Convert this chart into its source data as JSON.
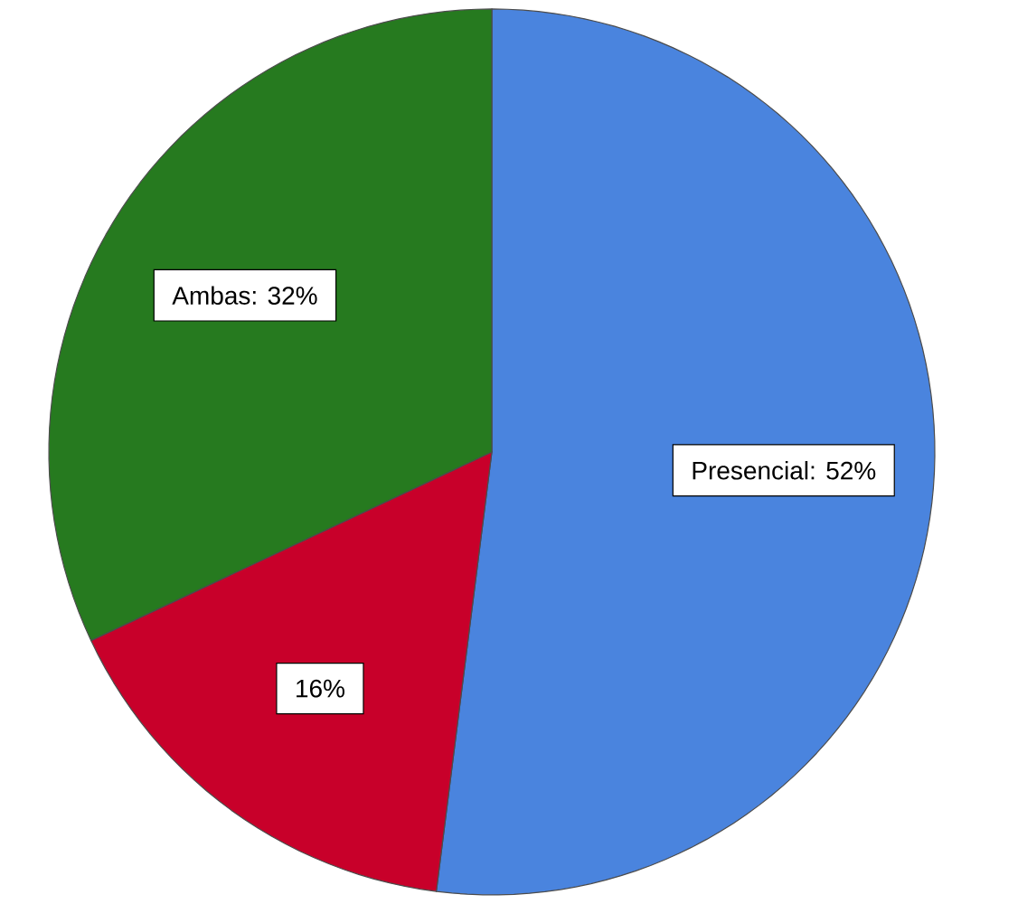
{
  "chart_data": {
    "type": "pie",
    "categories": [
      "Presencial",
      null,
      "Ambas"
    ],
    "values": [
      52,
      16,
      32
    ],
    "value_labels": [
      ": 52%",
      "16%",
      ": 32%"
    ],
    "colors": [
      "#4a84de",
      "#c8002a",
      "#267a1f"
    ]
  }
}
